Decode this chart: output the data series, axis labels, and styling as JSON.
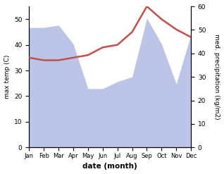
{
  "months": [
    "Jan",
    "Feb",
    "Mar",
    "Apr",
    "May",
    "Jun",
    "Jul",
    "Aug",
    "Sep",
    "Oct",
    "Nov",
    "Dec"
  ],
  "month_indices": [
    0,
    1,
    2,
    3,
    4,
    5,
    6,
    7,
    8,
    9,
    10,
    11
  ],
  "max_temp": [
    35,
    34,
    34,
    35,
    36,
    39,
    40,
    45,
    55,
    50,
    46,
    43
  ],
  "precipitation": [
    51,
    51,
    52,
    44,
    25,
    25,
    28,
    30,
    55,
    44,
    27,
    48
  ],
  "temp_color": "#c0504d",
  "precip_fill_color": "#bcc5e8",
  "xlabel": "date (month)",
  "ylabel_left": "max temp (C)",
  "ylabel_right": "med. precipitation (kg/m2)",
  "ylim_left": [
    0,
    55
  ],
  "ylim_right": [
    0,
    60
  ],
  "yticks_left": [
    0,
    10,
    20,
    30,
    40,
    50
  ],
  "yticks_right": [
    0,
    10,
    20,
    30,
    40,
    50,
    60
  ],
  "background_color": "#ffffff"
}
